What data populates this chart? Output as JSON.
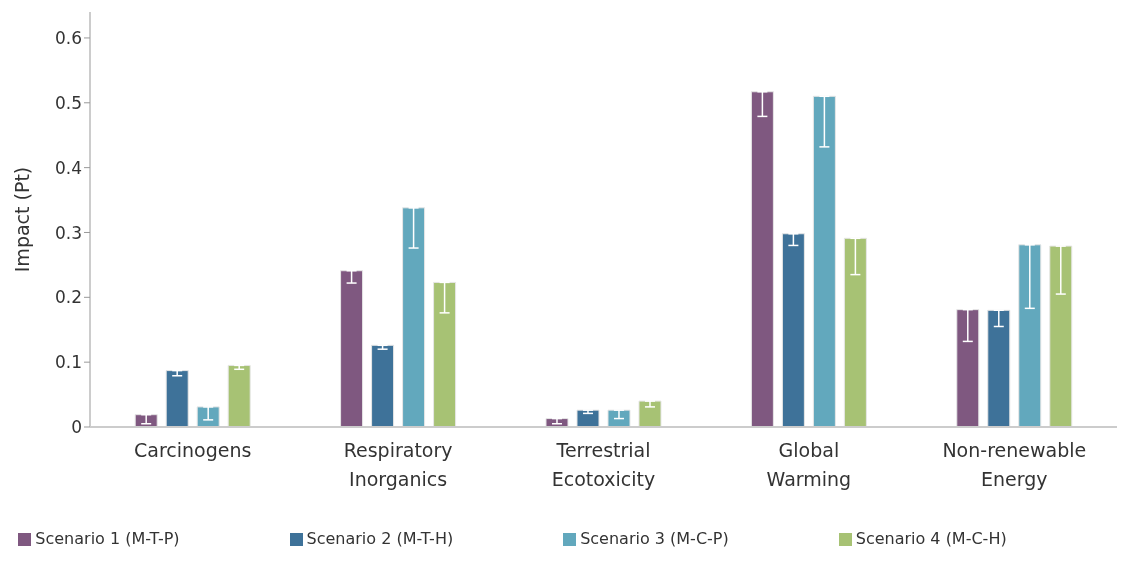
{
  "chart_data": {
    "type": "bar",
    "ylabel": "Impact (Pt)",
    "categories": [
      "Carcinogens",
      "Respiratory Inorganics",
      "Terrestrial Ecotoxicity",
      "Global Warming",
      "Non-renewable Energy"
    ],
    "series": [
      {
        "name": "Scenario 1 (M-T-P)",
        "color": "#7f5880",
        "values": [
          0.019,
          0.241,
          0.013,
          0.517,
          0.181
        ],
        "errors": [
          [
            0.005,
            0.019
          ],
          [
            0.222,
            0.241
          ],
          [
            0.005,
            0.013
          ],
          [
            0.479,
            0.517
          ],
          [
            0.132,
            0.181
          ]
        ]
      },
      {
        "name": "Scenario 2 (M-T-H)",
        "color": "#3e7299",
        "values": [
          0.087,
          0.126,
          0.026,
          0.298,
          0.18
        ],
        "errors": [
          [
            0.079,
            0.087
          ],
          [
            0.12,
            0.126
          ],
          [
            0.021,
            0.026
          ],
          [
            0.28,
            0.298
          ],
          [
            0.155,
            0.18
          ]
        ]
      },
      {
        "name": "Scenario 3 (M-C-P)",
        "color": "#62a8bd",
        "values": [
          0.031,
          0.338,
          0.026,
          0.51,
          0.281
        ],
        "errors": [
          [
            0.011,
            0.031
          ],
          [
            0.276,
            0.338
          ],
          [
            0.013,
            0.026
          ],
          [
            0.432,
            0.51
          ],
          [
            0.183,
            0.281
          ]
        ]
      },
      {
        "name": "Scenario 4 (M-C-H)",
        "color": "#a7c274",
        "values": [
          0.095,
          0.223,
          0.04,
          0.291,
          0.279
        ],
        "errors": [
          [
            0.089,
            0.095
          ],
          [
            0.176,
            0.223
          ],
          [
            0.031,
            0.04
          ],
          [
            0.235,
            0.291
          ],
          [
            0.205,
            0.279
          ]
        ]
      }
    ],
    "ylim": [
      0,
      0.64
    ],
    "yticks": [
      0,
      0.1,
      0.2,
      0.3,
      0.4,
      0.5,
      0.6
    ],
    "grid": false,
    "legend": "bottom"
  }
}
